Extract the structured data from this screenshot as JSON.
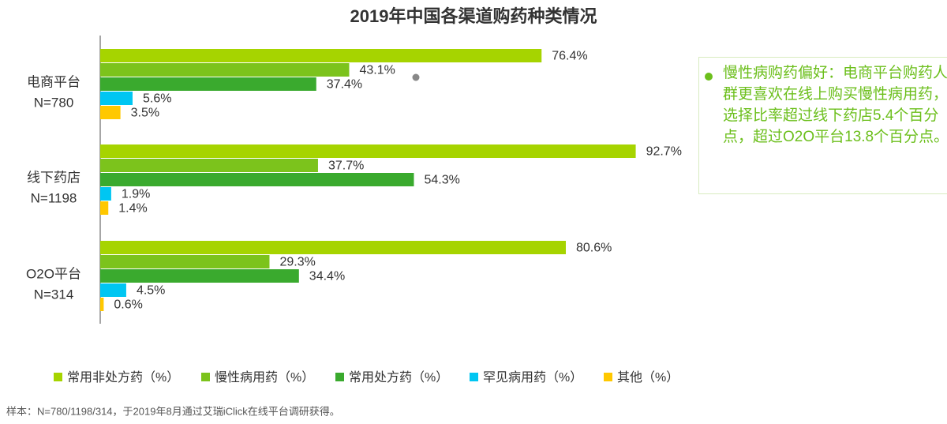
{
  "chart_data": {
    "type": "hbar",
    "title": "2019年中国各渠道购药种类情况",
    "categories": [
      [
        "电商平台",
        "N=780"
      ],
      [
        "线下药店",
        "N=1198"
      ],
      [
        "O2O平台",
        "N=314"
      ]
    ],
    "series": [
      {
        "name": "常用非处方药（%）",
        "color": "#a6d400",
        "values": [
          76.4,
          92.7,
          80.6
        ],
        "value_labels": [
          "76.4%",
          "92.7%",
          "80.6%"
        ]
      },
      {
        "name": "慢性病用药（%）",
        "color": "#7cc31c",
        "values": [
          43.1,
          37.7,
          29.3
        ],
        "value_labels": [
          "43.1%",
          "37.7%",
          "29.3%"
        ]
      },
      {
        "name": "常用处方药（%）",
        "color": "#3aaa2e",
        "values": [
          37.4,
          54.3,
          34.4
        ],
        "value_labels": [
          "37.4%",
          "54.3%",
          "34.4%"
        ]
      },
      {
        "name": "罕见病用药（%）",
        "color": "#00c6f2",
        "values": [
          5.6,
          1.9,
          4.5
        ],
        "value_labels": [
          "5.6%",
          "1.9%",
          "4.5%"
        ]
      },
      {
        "name": "其他（%）",
        "color": "#ffc800",
        "values": [
          3.5,
          1.4,
          0.6
        ],
        "value_labels": [
          "3.5%",
          "1.4%",
          "0.6%"
        ]
      }
    ],
    "xlim": [
      0,
      100
    ],
    "annotation": "慢性病购药偏好：电商平台购药人群更喜欢在线上购买慢性病用药，选择比率超过线下药店5.4个百分点，超过O2O平台13.8个百分点。",
    "footnote": "样本：N=780/1198/314，于2019年8月通过艾瑞iClick在线平台调研获得。"
  }
}
